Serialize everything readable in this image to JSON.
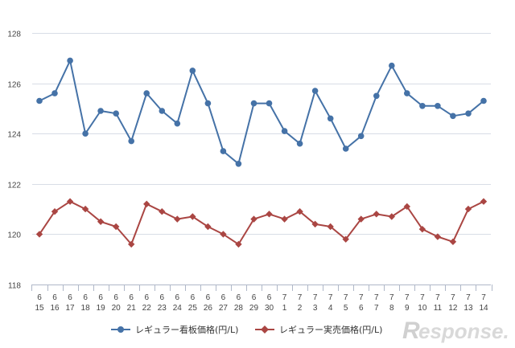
{
  "chart_data": {
    "type": "line",
    "title": "",
    "xlabel": "",
    "ylabel": "",
    "ylim": [
      118,
      128
    ],
    "yticks": [
      118,
      120,
      122,
      124,
      126,
      128
    ],
    "grid": true,
    "legend_position": "bottom",
    "categories": [
      {
        "month": "6",
        "day": "15"
      },
      {
        "month": "6",
        "day": "16"
      },
      {
        "month": "6",
        "day": "17"
      },
      {
        "month": "6",
        "day": "18"
      },
      {
        "month": "6",
        "day": "19"
      },
      {
        "month": "6",
        "day": "20"
      },
      {
        "month": "6",
        "day": "21"
      },
      {
        "month": "6",
        "day": "22"
      },
      {
        "month": "6",
        "day": "23"
      },
      {
        "month": "6",
        "day": "24"
      },
      {
        "month": "6",
        "day": "25"
      },
      {
        "month": "6",
        "day": "26"
      },
      {
        "month": "6",
        "day": "27"
      },
      {
        "month": "6",
        "day": "28"
      },
      {
        "month": "6",
        "day": "29"
      },
      {
        "month": "6",
        "day": "30"
      },
      {
        "month": "7",
        "day": "1"
      },
      {
        "month": "7",
        "day": "2"
      },
      {
        "month": "7",
        "day": "3"
      },
      {
        "month": "7",
        "day": "4"
      },
      {
        "month": "7",
        "day": "5"
      },
      {
        "month": "7",
        "day": "6"
      },
      {
        "month": "7",
        "day": "7"
      },
      {
        "month": "7",
        "day": "8"
      },
      {
        "month": "7",
        "day": "9"
      },
      {
        "month": "7",
        "day": "10"
      },
      {
        "month": "7",
        "day": "11"
      },
      {
        "month": "7",
        "day": "12"
      },
      {
        "month": "7",
        "day": "13"
      },
      {
        "month": "7",
        "day": "14"
      }
    ],
    "series": [
      {
        "name": "レギュラー看板価格(円/L)",
        "color": "#4572a7",
        "marker": "circle",
        "values": [
          125.3,
          125.6,
          126.9,
          124.0,
          124.9,
          124.8,
          123.7,
          125.6,
          124.9,
          124.4,
          126.5,
          125.2,
          123.3,
          122.8,
          125.2,
          125.2,
          124.1,
          123.6,
          125.7,
          124.6,
          123.4,
          123.9,
          125.5,
          126.7,
          125.6,
          125.1,
          125.1,
          124.7,
          124.8,
          125.3
        ]
      },
      {
        "name": "レギュラー実売価格(円/L)",
        "color": "#aa4643",
        "marker": "diamond",
        "values": [
          120.0,
          120.9,
          121.3,
          121.0,
          120.5,
          120.3,
          119.6,
          121.2,
          120.9,
          120.6,
          120.7,
          120.3,
          120.0,
          119.6,
          120.6,
          120.8,
          120.6,
          120.9,
          120.4,
          120.3,
          119.8,
          120.6,
          120.8,
          120.7,
          121.1,
          120.2,
          119.9,
          119.7,
          121.0,
          121.3
        ]
      }
    ]
  },
  "watermark": {
    "logo_initial": "R",
    "logo_rest": "esponse."
  }
}
